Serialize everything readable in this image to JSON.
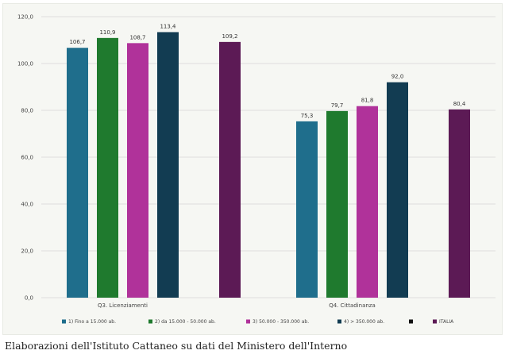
{
  "chart_data": {
    "type": "bar",
    "categories": [
      "Q3. Licenziamenti",
      "Q4. Cittadinanza"
    ],
    "series": [
      {
        "name": "1) Fino a 15.000 ab.",
        "color": "#1f6e8c",
        "values": [
          106.7,
          75.3
        ]
      },
      {
        "name": "2) da 15.000 - 50.000 ab.",
        "color": "#1f7a2e",
        "values": [
          110.9,
          79.7
        ]
      },
      {
        "name": "3) 50.000 - 350.000 ab.",
        "color": "#b0329a",
        "values": [
          108.7,
          81.8
        ]
      },
      {
        "name": "4) > 350.000 ab.",
        "color": "#123c52",
        "values": [
          113.4,
          92.0
        ]
      },
      {
        "name": "",
        "color": "#111111",
        "values": [
          null,
          null
        ],
        "legend_only": true
      },
      {
        "name": "ITALIA",
        "color": "#5c1a55",
        "values": [
          109.2,
          80.4
        ],
        "gap_before": true
      }
    ],
    "data_labels": [
      [
        "106,7",
        "110,9",
        "108,7",
        "113,4",
        "109,2"
      ],
      [
        "75,3",
        "79,7",
        "81,8",
        "92,0",
        "80,4"
      ]
    ],
    "y_ticks": [
      "0,0",
      "20,0",
      "40,0",
      "60,0",
      "80,0",
      "100,0",
      "120,0"
    ],
    "ylim": [
      0,
      120
    ],
    "title": "",
    "xlabel": "",
    "ylabel": "",
    "grid": true,
    "legend_position": "bottom"
  },
  "caption": "Elaborazioni dell'Istituto Cattaneo su dati del Ministero dell'Interno"
}
